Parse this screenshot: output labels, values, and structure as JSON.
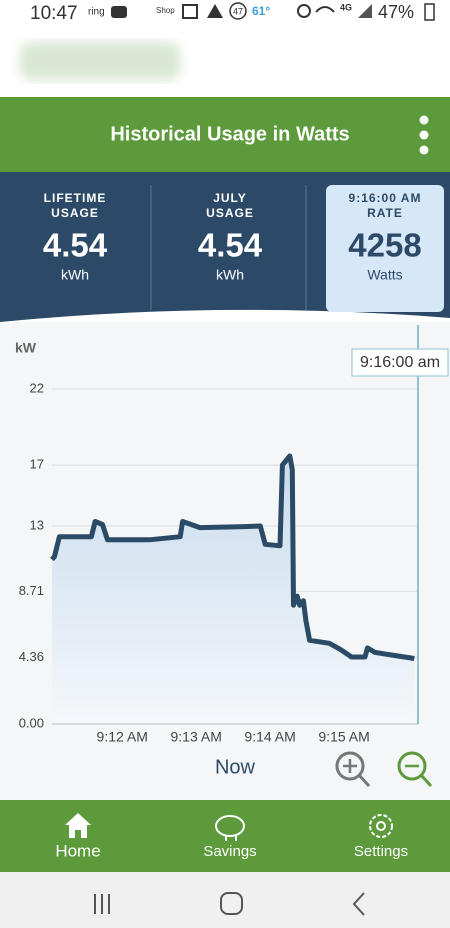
{
  "status_bar": {
    "time": "10:47",
    "icons": [
      "ring",
      "Shop",
      "47",
      "61°"
    ],
    "network": "4G",
    "battery": "47%"
  },
  "header": {
    "title": "Historical Usage in Watts"
  },
  "stats": [
    {
      "label_lines": [
        "LIFETIME",
        "USAGE"
      ],
      "value": "4.54",
      "unit": "kWh"
    },
    {
      "label_lines": [
        "JULY",
        "USAGE"
      ],
      "value": "4.54",
      "unit": "kWh"
    },
    {
      "label_lines": [
        "9:16:00 AM",
        "RATE"
      ],
      "value": "4258",
      "unit": "Watts"
    }
  ],
  "chart_data": {
    "type": "line",
    "y_label": "kW",
    "x": [
      "09:11:03",
      "09:11:05",
      "09:11:09",
      "09:11:35",
      "09:11:38",
      "09:11:44",
      "09:11:48",
      "09:12:22",
      "09:12:47",
      "09:12:49",
      "09:13:03",
      "09:13:35",
      "09:13:52",
      "09:13:56",
      "09:14:08",
      "09:14:10",
      "09:14:16",
      "09:14:18",
      "09:14:19",
      "09:14:22",
      "09:14:24",
      "09:14:27",
      "09:14:29",
      "09:14:32",
      "09:14:48",
      "09:14:57",
      "09:15:06",
      "09:15:17",
      "09:15:19",
      "09:15:25",
      "09:15:41",
      "09:15:57"
    ],
    "series": [
      {
        "color": "#2b4a66",
        "values": [
          10.8,
          11.0,
          12.3,
          12.3,
          13.3,
          13.1,
          12.1,
          12.1,
          12.3,
          13.3,
          12.9,
          12.95,
          13.0,
          11.8,
          11.7,
          17.0,
          17.6,
          16.7,
          7.8,
          8.4,
          7.8,
          8.1,
          6.8,
          5.5,
          5.3,
          4.9,
          4.4,
          4.4,
          5.0,
          4.7,
          4.5,
          4.3
        ]
      }
    ],
    "ylim": [
      0,
      22
    ],
    "yticks": [
      {
        "value": 0,
        "label": "0.00"
      },
      4.36,
      8.71,
      13,
      17,
      22
    ],
    "xlim": [
      "09:11:03",
      "09:16:00"
    ],
    "xticks": [
      {
        "value": "09:12:00",
        "label": "9:12 AM"
      },
      {
        "value": "09:13:00",
        "label": "9:13 AM"
      },
      {
        "value": "09:14:00",
        "label": "9:14 AM"
      },
      {
        "value": "09:15:00",
        "label": "9:15 AM"
      }
    ],
    "grid": true,
    "cursor": {
      "x": "09:16:00",
      "label": "9:16:00 am"
    },
    "now_label": "Now"
  },
  "nav": [
    {
      "label": "Home"
    },
    {
      "label": "Savings"
    },
    {
      "label": "Settings"
    }
  ]
}
